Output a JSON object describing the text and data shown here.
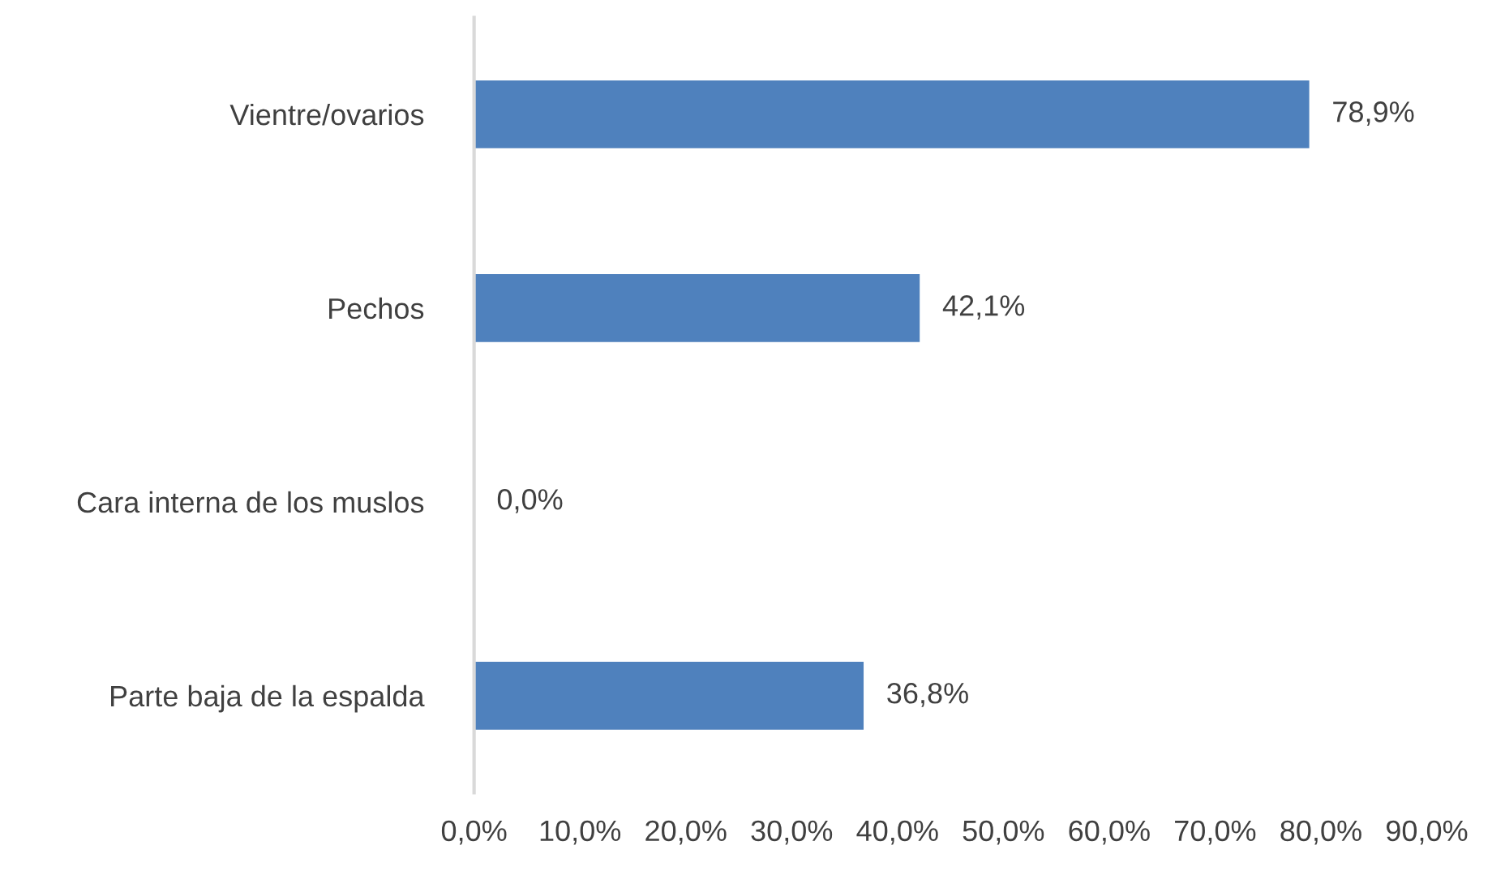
{
  "chart_data": {
    "type": "bar",
    "orientation": "horizontal",
    "categories": [
      "Vientre/ovarios",
      "Pechos",
      "Cara interna de los muslos",
      "Parte baja de la espalda"
    ],
    "values": [
      78.9,
      42.1,
      0.0,
      36.8
    ],
    "value_labels": [
      "78,9%",
      "42,1%",
      "0,0%",
      "36,8%"
    ],
    "color": "#4f81bd",
    "xlim": [
      0,
      90
    ],
    "xticks": [
      {
        "value": 0,
        "label": "0,0%"
      },
      {
        "value": 10,
        "label": "10,0%"
      },
      {
        "value": 20,
        "label": "20,0%"
      },
      {
        "value": 30,
        "label": "30,0%"
      },
      {
        "value": 40,
        "label": "40,0%"
      },
      {
        "value": 50,
        "label": "50,0%"
      },
      {
        "value": 60,
        "label": "60,0%"
      },
      {
        "value": 70,
        "label": "70,0%"
      },
      {
        "value": 80,
        "label": "80,0%"
      },
      {
        "value": 90,
        "label": "90,0%"
      }
    ],
    "grid": false,
    "legend": false
  }
}
